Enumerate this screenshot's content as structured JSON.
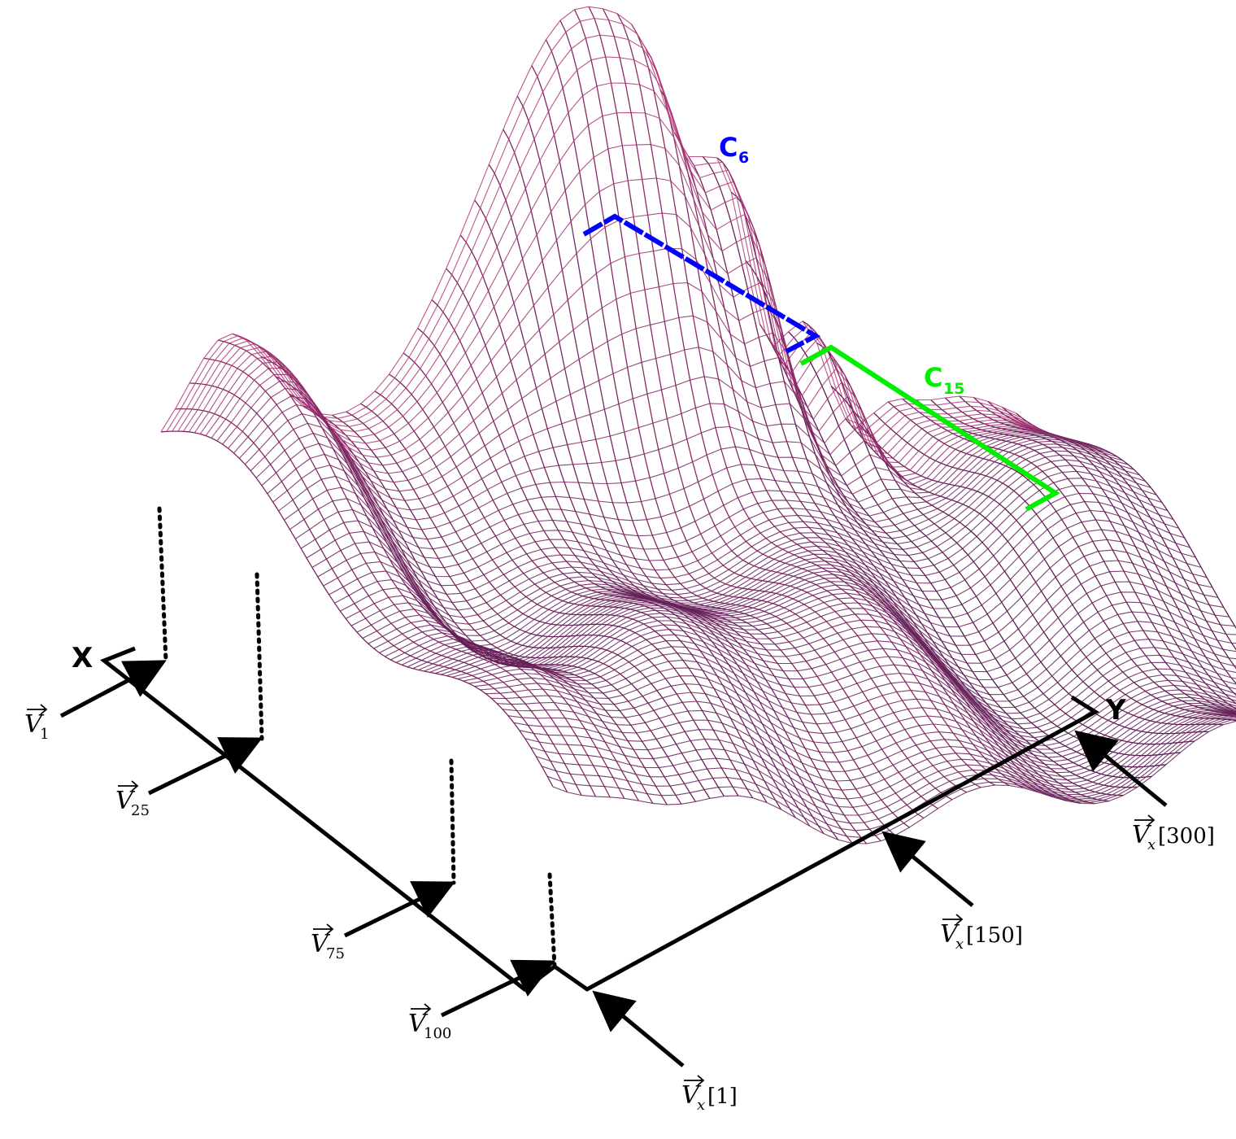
{
  "axes": {
    "x_label": "X",
    "y_label": "Y"
  },
  "row_vectors": [
    {
      "base": "V",
      "subscript": "1"
    },
    {
      "base": "V",
      "subscript": "25"
    },
    {
      "base": "V",
      "subscript": "75"
    },
    {
      "base": "V",
      "subscript": "100"
    }
  ],
  "column_vectors": [
    {
      "base": "V",
      "subscript": "x",
      "index": "[1]"
    },
    {
      "base": "V",
      "subscript": "x",
      "index": "[150]"
    },
    {
      "base": "V",
      "subscript": "x",
      "index": "[300]"
    }
  ],
  "clusters": [
    {
      "letter": "C",
      "subscript": "6",
      "color": "#0000ff"
    },
    {
      "letter": "C",
      "subscript": "15",
      "color": "#00ee00"
    }
  ],
  "colors": {
    "colormap": "inferno",
    "colormap_low": "#1a0a3a",
    "colormap_mid": "#b8387a",
    "colormap_high": "#fcf5a0"
  }
}
